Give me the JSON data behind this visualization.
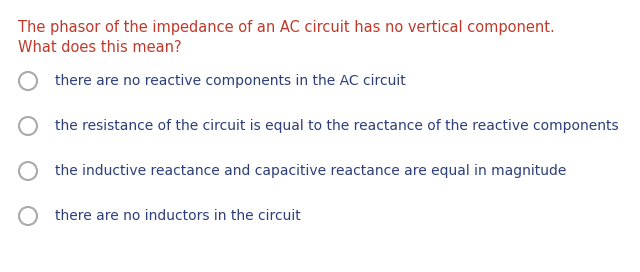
{
  "background_color": "#ffffff",
  "question_lines": [
    "The phasor of the impedance of an AC circuit has no vertical component.",
    "What does this mean?"
  ],
  "question_color": "#c0392b",
  "options": [
    "there are no reactive components in the AC circuit",
    "the resistance of the circuit is equal to the reactance of the reactive components",
    "the inductive reactance and capacitive reactance are equal in magnitude",
    "there are no inductors in the circuit"
  ],
  "option_color": "#2c3e7a",
  "circle_edge_color": "#aaaaaa",
  "font_size_question": 10.5,
  "font_size_options": 10.0
}
